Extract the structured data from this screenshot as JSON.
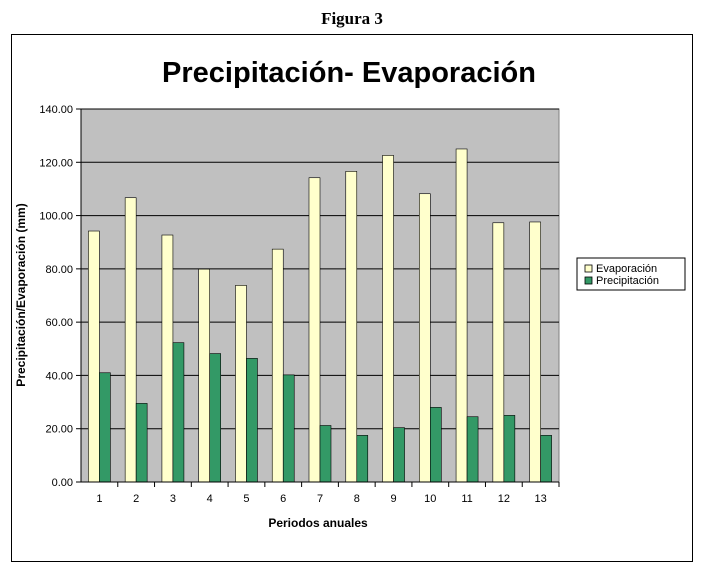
{
  "figure_caption": "Figura 3",
  "chart_data": {
    "type": "bar",
    "title": "Precipitación- Evaporación",
    "xlabel": "Periodos anuales",
    "ylabel": "Precipitación/Evaporación (mm)",
    "ylim": [
      0,
      140
    ],
    "ytick_step": 20,
    "ytick_labels": [
      "0.00",
      "20.00",
      "40.00",
      "60.00",
      "80.00",
      "100.00",
      "120.00",
      "140.00"
    ],
    "grid": true,
    "legend_position": "right",
    "categories": [
      "1",
      "2",
      "3",
      "4",
      "5",
      "6",
      "7",
      "8",
      "9",
      "10",
      "11",
      "12",
      "13"
    ],
    "series": [
      {
        "name": "Evaporación",
        "color": "#FFFFCC",
        "values": [
          94.2,
          106.7,
          92.7,
          79.9,
          73.8,
          87.4,
          114.2,
          116.6,
          122.6,
          108.2,
          125.0,
          97.3,
          97.6
        ]
      },
      {
        "name": "Precipitación",
        "color": "#339966",
        "values": [
          41.0,
          29.5,
          52.3,
          48.2,
          46.4,
          40.2,
          21.2,
          17.5,
          20.4,
          28.0,
          24.5,
          25.0,
          17.5
        ]
      }
    ],
    "plot_background": "#C0C0C0"
  }
}
